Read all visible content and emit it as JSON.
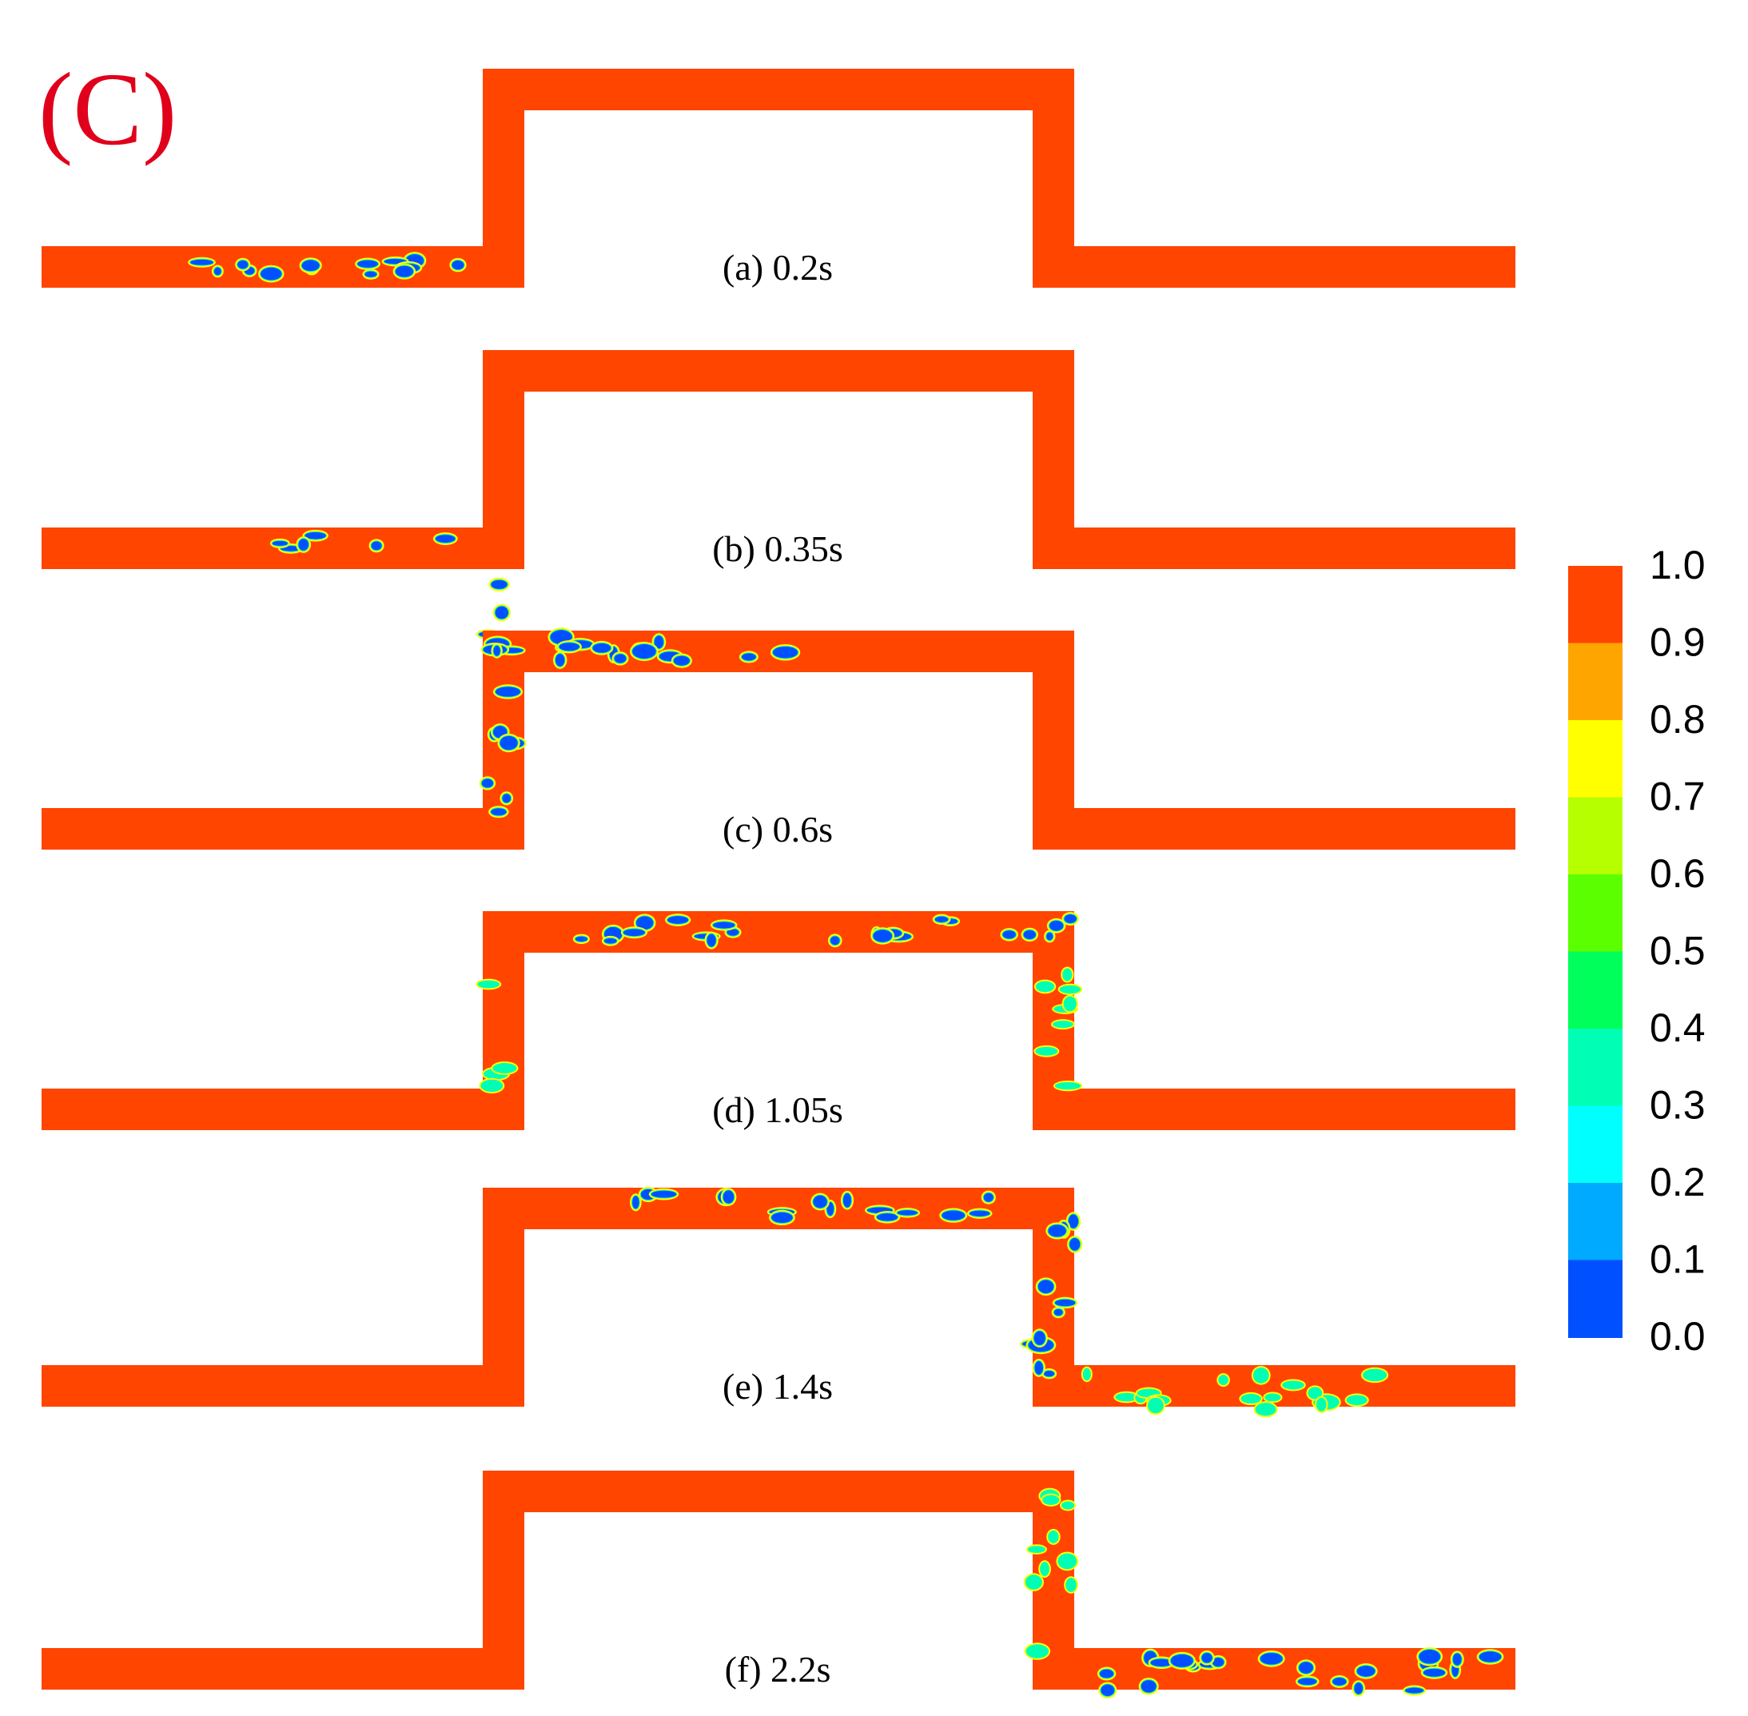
{
  "figure": {
    "tag": "(C)",
    "tag_color": "#e0001b",
    "pipe_color": "#ff4500"
  },
  "panels": [
    {
      "id": "a",
      "label": "(a) 0.2s"
    },
    {
      "id": "b",
      "label": "(b) 0.35s"
    },
    {
      "id": "c",
      "label": "(c) 0.6s"
    },
    {
      "id": "d",
      "label": "(d) 1.05s"
    },
    {
      "id": "e",
      "label": "(e) 1.4s"
    },
    {
      "id": "f",
      "label": "(f) 2.2s"
    }
  ],
  "colorbar": {
    "ticks": [
      "1.0",
      "0.9",
      "0.8",
      "0.7",
      "0.6",
      "0.5",
      "0.4",
      "0.3",
      "0.2",
      "0.1",
      "0.0"
    ],
    "colors": [
      "#ff4500",
      "#ffa500",
      "#ffff00",
      "#b5ff00",
      "#5cff00",
      "#00ff5a",
      "#00ffb4",
      "#00ffff",
      "#00aaff",
      "#0050ff",
      "#0000ff"
    ]
  }
}
